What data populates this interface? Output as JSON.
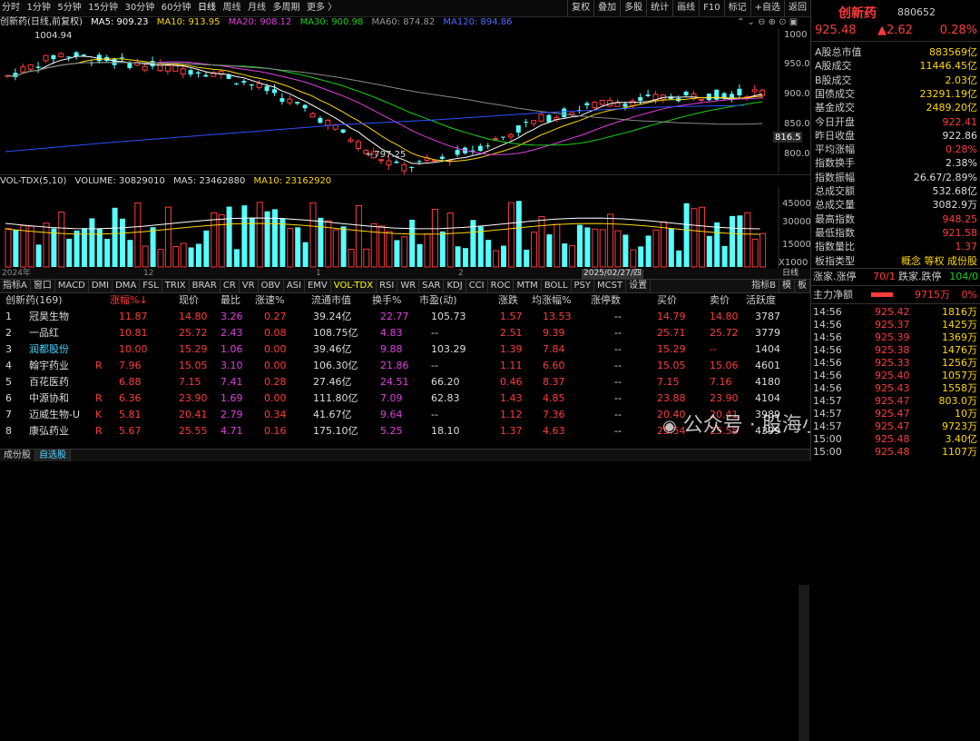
{
  "toolbar": {
    "left": [
      "分时",
      "1分钟",
      "5分钟",
      "15分钟",
      "30分钟",
      "60分钟",
      "日线",
      "周线",
      "月线",
      "多周期",
      "更多 〉"
    ],
    "right": [
      "复权",
      "叠加",
      "多股",
      "统计",
      "画线",
      "F10",
      "标记",
      "+自选",
      "返回"
    ]
  },
  "ma": {
    "name": "创新药(日线,前复权)",
    "ma5": "MA5: 909.23",
    "ma10": "MA10: 913.95",
    "ma20": "MA20: 908.12",
    "ma30": "MA30: 900.98",
    "ma60": "MA60: 874.82",
    "ma120": "MA120: 894.86"
  },
  "chart_labels": {
    "high": "1004.94",
    "low": "←797.25",
    "y_ticks": [
      "1000",
      "950.0",
      "900.0",
      "850.0",
      "800.0"
    ],
    "cur_tag": "816.5"
  },
  "vol": {
    "title": "VOL-TDX(5,10)",
    "volume": "VOLUME: 30829010",
    "ma5": "MA5: 23462880",
    "ma10": "MA10: 23162920",
    "y_ticks": [
      "45000",
      "30000",
      "15000",
      "X1000"
    ]
  },
  "timeaxis": {
    "year": "2024年",
    "m1": "12",
    "m2": "1",
    "m3": "2",
    "date": "2025/02/27/四",
    "right": "日线"
  },
  "tabs": [
    "指标A",
    "窗口",
    "MACD",
    "DMI",
    "DMA",
    "FSL",
    "TRIX",
    "BRAR",
    "CR",
    "VR",
    "OBV",
    "ASI",
    "EMV",
    "VOL-TDX",
    "RSI",
    "WR",
    "SAR",
    "KDJ",
    "CCI",
    "ROC",
    "MTM",
    "BOLL",
    "PSY",
    "MCST",
    "设置"
  ],
  "tabs_right": [
    "指标B",
    "模",
    "板"
  ],
  "table": {
    "headers": [
      "创新药(169)",
      "涨幅%↓",
      "现价",
      "最比",
      "涨速%",
      "流通市值",
      "换手%",
      "市盈(动)",
      "涨跌",
      "均涨幅%",
      "涨停数",
      "买价",
      "卖价",
      "活跃度"
    ],
    "rows": [
      [
        "1",
        "冠昊生物",
        "",
        "11.87",
        "14.80",
        "3.26",
        "0.27",
        "39.24亿",
        "22.77",
        "105.73",
        "1.57",
        "13.53",
        "--",
        "14.79",
        "14.80",
        "3787"
      ],
      [
        "2",
        "一品红",
        "",
        "10.81",
        "25.72",
        "2.43",
        "0.08",
        "108.75亿",
        "4.83",
        "--",
        "2.51",
        "9.39",
        "--",
        "25.71",
        "25.72",
        "3779"
      ],
      [
        "3",
        "润都股份",
        "",
        "10.00",
        "15.29",
        "1.06",
        "0.00",
        "39.46亿",
        "9.88",
        "103.29",
        "1.39",
        "7.84",
        "--",
        "15.29",
        "--",
        "1404"
      ],
      [
        "4",
        "翰宇药业",
        "R",
        "7.96",
        "15.05",
        "3.10",
        "0.00",
        "106.30亿",
        "21.86",
        "--",
        "1.11",
        "6.60",
        "--",
        "15.05",
        "15.06",
        "4601"
      ],
      [
        "5",
        "百花医药",
        "",
        "6.88",
        "7.15",
        "7.41",
        "0.28",
        "27.46亿",
        "24.51",
        "66.20",
        "0.46",
        "8.37",
        "--",
        "7.15",
        "7.16",
        "4180"
      ],
      [
        "6",
        "中源协和",
        "R",
        "6.36",
        "23.90",
        "1.69",
        "0.00",
        "111.80亿",
        "7.09",
        "62.83",
        "1.43",
        "4.85",
        "--",
        "23.88",
        "23.90",
        "4104"
      ],
      [
        "7",
        "迈威生物-U",
        "K",
        "5.81",
        "20.41",
        "2.79",
        "0.34",
        "41.67亿",
        "9.64",
        "--",
        "1.12",
        "7.36",
        "--",
        "20.40",
        "20.41",
        "3989"
      ],
      [
        "8",
        "康弘药业",
        "R",
        "5.67",
        "25.55",
        "4.71",
        "0.16",
        "175.10亿",
        "5.25",
        "18.10",
        "1.37",
        "4.63",
        "--",
        "25.54",
        "25.55",
        "4399"
      ]
    ]
  },
  "bottom": [
    "成份股",
    "自选股"
  ],
  "watermark": "公众号 · 股海小水手",
  "rp": {
    "name": "创新药",
    "code": "880652",
    "price": "925.48",
    "chg": "▲2.62",
    "pct": "0.28%",
    "rows": [
      [
        "A股总市值",
        "883569亿"
      ],
      [
        "A股成交",
        "11446.45亿"
      ],
      [
        "B股成交",
        "2.03亿"
      ],
      [
        "国债成交",
        "23291.19亿"
      ],
      [
        "基金成交",
        "2489.20亿"
      ],
      [
        "今日开盘",
        "922.41"
      ],
      [
        "昨日收盘",
        "922.86"
      ],
      [
        "平均涨幅",
        "0.28%"
      ],
      [
        "指数换手",
        "2.38%"
      ],
      [
        "指数振幅",
        "26.67/2.89%"
      ],
      [
        "总成交额",
        "532.68亿"
      ],
      [
        "总成交量",
        "3082.9万"
      ],
      [
        "最高指数",
        "948.25"
      ],
      [
        "最低指数",
        "921.58"
      ],
      [
        "指数量比",
        "1.37"
      ],
      [
        "板指类型",
        "概念 等权 成份股"
      ]
    ],
    "updown": [
      "涨家.涨停",
      "70/1",
      "跌家.跌停",
      "104/0"
    ],
    "mainflow": [
      "主力净额",
      "9715万",
      "0%"
    ],
    "trades": [
      [
        "14:56",
        "925.42",
        "1816万"
      ],
      [
        "14:56",
        "925.37",
        "1425万"
      ],
      [
        "14:56",
        "925.39",
        "1369万"
      ],
      [
        "14:56",
        "925.38",
        "1476万"
      ],
      [
        "14:56",
        "925.33",
        "1256万"
      ],
      [
        "14:56",
        "925.40",
        "1057万"
      ],
      [
        "14:56",
        "925.43",
        "1558万"
      ],
      [
        "14:57",
        "925.47",
        "803.0万"
      ],
      [
        "14:57",
        "925.47",
        "10万"
      ],
      [
        "14:57",
        "925.47",
        "9723万"
      ],
      [
        "15:00",
        "925.48",
        "3.40亿"
      ],
      [
        "15:00",
        "925.48",
        "1107万"
      ]
    ]
  },
  "colors": {
    "up": "#ff3b3b",
    "down": "#19d219",
    "candle_down": "#54ffff",
    "ma5": "#ffffff",
    "ma10": "#ffd700",
    "ma20": "#e040e0",
    "ma30": "#19d219",
    "ma60": "#888888",
    "ma120": "#3050ff"
  }
}
